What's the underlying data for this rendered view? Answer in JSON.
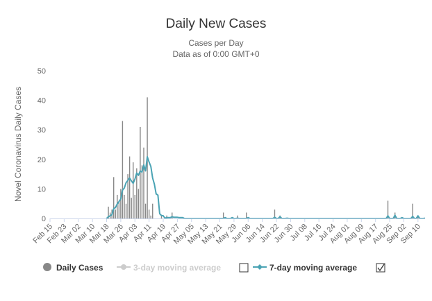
{
  "chart_data": {
    "type": "bar",
    "title": "Daily New Cases",
    "subtitle_line1": "Cases per Day",
    "subtitle_line2": "Data as of 0:00 GMT+0",
    "ylabel": "Novel Coronavirus Daily Cases",
    "xlabel": "",
    "ylim": [
      0,
      50
    ],
    "y_ticks": [
      "0",
      "10",
      "20",
      "30",
      "40",
      "50"
    ],
    "x_start": "2020-02-15",
    "x_end": "2020-09-14",
    "x_ticks": [
      "Feb 15",
      "Feb 23",
      "Mar 02",
      "Mar 10",
      "Mar 18",
      "Mar 26",
      "Apr 03",
      "Apr 11",
      "Apr 19",
      "Apr 27",
      "May 05",
      "May 13",
      "May 21",
      "May 29",
      "Jun 06",
      "Jun 14",
      "Jun 22",
      "Jun 30",
      "Jul 08",
      "Jul 16",
      "Jul 24",
      "Aug 01",
      "Aug 09",
      "Aug 17",
      "Aug 25",
      "Sep 02",
      "Sep 10"
    ],
    "grid": false,
    "legend_position": "bottom",
    "colors": {
      "bars": "#888888",
      "ma7": "#4aa3b4",
      "ma3": "#cccccc",
      "axis": "#ccd6eb",
      "text": "#666666",
      "title": "#333333"
    },
    "series": [
      {
        "name": "Daily Cases",
        "type": "bar",
        "points": [
          [
            "2020-03-19",
            4
          ],
          [
            "2020-03-20",
            2
          ],
          [
            "2020-03-21",
            3
          ],
          [
            "2020-03-22",
            14
          ],
          [
            "2020-03-23",
            3
          ],
          [
            "2020-03-24",
            8
          ],
          [
            "2020-03-25",
            6
          ],
          [
            "2020-03-26",
            10
          ],
          [
            "2020-03-27",
            33
          ],
          [
            "2020-03-28",
            8
          ],
          [
            "2020-03-29",
            5
          ],
          [
            "2020-03-30",
            15
          ],
          [
            "2020-03-31",
            21
          ],
          [
            "2020-04-01",
            7
          ],
          [
            "2020-04-02",
            19
          ],
          [
            "2020-04-03",
            8
          ],
          [
            "2020-04-04",
            17
          ],
          [
            "2020-04-05",
            10
          ],
          [
            "2020-04-06",
            31
          ],
          [
            "2020-04-07",
            18
          ],
          [
            "2020-04-08",
            24
          ],
          [
            "2020-04-09",
            5
          ],
          [
            "2020-04-10",
            41
          ],
          [
            "2020-04-11",
            3
          ],
          [
            "2020-04-12",
            1
          ],
          [
            "2020-04-13",
            5
          ],
          [
            "2020-04-18",
            1
          ],
          [
            "2020-04-21",
            1
          ],
          [
            "2020-04-24",
            2
          ],
          [
            "2020-05-23",
            2
          ],
          [
            "2020-05-31",
            1
          ],
          [
            "2020-06-05",
            2
          ],
          [
            "2020-06-21",
            3
          ],
          [
            "2020-06-24",
            1
          ],
          [
            "2020-08-24",
            6
          ],
          [
            "2020-08-28",
            2
          ],
          [
            "2020-09-07",
            5
          ],
          [
            "2020-09-10",
            1
          ]
        ]
      },
      {
        "name": "3-day moving average",
        "type": "line",
        "visible": false,
        "points": []
      },
      {
        "name": "7-day moving average",
        "type": "line",
        "visible": true,
        "points": [
          [
            "2020-03-18",
            0
          ],
          [
            "2020-03-19",
            0.6
          ],
          [
            "2020-03-20",
            0.9
          ],
          [
            "2020-03-21",
            1.3
          ],
          [
            "2020-03-22",
            3.3
          ],
          [
            "2020-03-23",
            3.7
          ],
          [
            "2020-03-24",
            4.9
          ],
          [
            "2020-03-25",
            5.7
          ],
          [
            "2020-03-26",
            6.6
          ],
          [
            "2020-03-27",
            9.6
          ],
          [
            "2020-03-28",
            10.3
          ],
          [
            "2020-03-29",
            12.1
          ],
          [
            "2020-03-30",
            12.9
          ],
          [
            "2020-03-31",
            13.7
          ],
          [
            "2020-04-01",
            12.7
          ],
          [
            "2020-04-02",
            11.9
          ],
          [
            "2020-04-03",
            13.3
          ],
          [
            "2020-04-04",
            15.4
          ],
          [
            "2020-04-05",
            14.6
          ],
          [
            "2020-04-06",
            16.1
          ],
          [
            "2020-04-07",
            15.7
          ],
          [
            "2020-04-08",
            18.1
          ],
          [
            "2020-04-09",
            16.1
          ],
          [
            "2020-04-10",
            20.9
          ],
          [
            "2020-04-11",
            19.1
          ],
          [
            "2020-04-12",
            17.6
          ],
          [
            "2020-04-13",
            13.7
          ],
          [
            "2020-04-14",
            11.6
          ],
          [
            "2020-04-15",
            8.3
          ],
          [
            "2020-04-16",
            7.9
          ],
          [
            "2020-04-17",
            1.6
          ],
          [
            "2020-04-18",
            1.0
          ],
          [
            "2020-04-19",
            0.9
          ],
          [
            "2020-04-20",
            0.1
          ],
          [
            "2020-04-21",
            0.3
          ],
          [
            "2020-04-22",
            0.3
          ],
          [
            "2020-04-23",
            0.3
          ],
          [
            "2020-04-24",
            0.6
          ],
          [
            "2020-04-25",
            0.4
          ],
          [
            "2020-04-26",
            0.4
          ],
          [
            "2020-04-27",
            0.4
          ],
          [
            "2020-04-28",
            0.3
          ],
          [
            "2020-04-29",
            0.3
          ],
          [
            "2020-04-30",
            0.3
          ],
          [
            "2020-05-01",
            0
          ],
          [
            "2020-05-23",
            0
          ],
          [
            "2020-05-24",
            0.3
          ],
          [
            "2020-05-28",
            0.3
          ],
          [
            "2020-05-29",
            0
          ],
          [
            "2020-05-31",
            0.1
          ],
          [
            "2020-06-06",
            0.3
          ],
          [
            "2020-06-12",
            0
          ],
          [
            "2020-06-21",
            0.4
          ],
          [
            "2020-06-24",
            0.6
          ],
          [
            "2020-06-28",
            0.1
          ],
          [
            "2020-07-01",
            0
          ],
          [
            "2020-08-24",
            0.9
          ],
          [
            "2020-08-28",
            1.1
          ],
          [
            "2020-09-01",
            0.3
          ],
          [
            "2020-09-07",
            0.7
          ],
          [
            "2020-09-10",
            0.9
          ],
          [
            "2020-09-14",
            0.1
          ]
        ]
      }
    ]
  },
  "legend": {
    "items": [
      {
        "label": "Daily Cases",
        "active": true
      },
      {
        "label": "3-day moving average",
        "active": false
      },
      {
        "label": "7-day moving average",
        "active": true
      }
    ],
    "checkbox_3day": false,
    "checkbox_7day": true
  }
}
